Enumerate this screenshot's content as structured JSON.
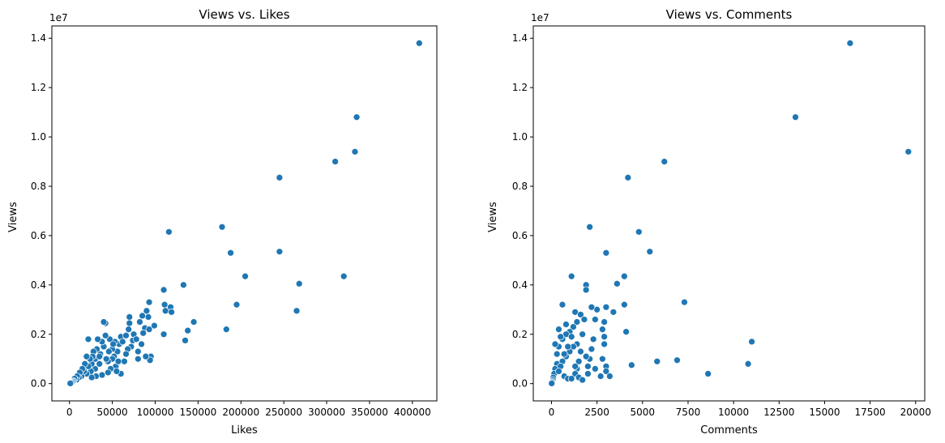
{
  "chart_data": [
    {
      "type": "scatter",
      "title": "Views vs. Likes",
      "xlabel": "Likes",
      "ylabel": "Views",
      "y_offset_label": "1e7",
      "xlim": [
        -20500,
        428500
      ],
      "ylim": [
        -700000,
        14500000
      ],
      "xticks": [
        0,
        50000,
        100000,
        150000,
        200000,
        250000,
        300000,
        350000,
        400000
      ],
      "xtick_labels": [
        "0",
        "50000",
        "100000",
        "150000",
        "200000",
        "250000",
        "300000",
        "350000",
        "400000"
      ],
      "yticks": [
        0,
        2000000,
        4000000,
        6000000,
        8000000,
        10000000,
        12000000,
        14000000
      ],
      "ytick_labels": [
        "0.0",
        "0.2",
        "0.4",
        "0.6",
        "0.8",
        "1.0",
        "1.2",
        "1.4"
      ],
      "grid": false,
      "series": [
        {
          "color": "#1f77b4",
          "points": [
            [
              408000,
              13800000
            ],
            [
              335000,
              10800000
            ],
            [
              333000,
              9400000
            ],
            [
              310000,
              9000000
            ],
            [
              245000,
              8350000
            ],
            [
              245000,
              5350000
            ],
            [
              320000,
              4350000
            ],
            [
              268000,
              4050000
            ],
            [
              265000,
              2950000
            ],
            [
              178000,
              6350000
            ],
            [
              188000,
              5300000
            ],
            [
              205000,
              4350000
            ],
            [
              195000,
              3200000
            ],
            [
              183000,
              2200000
            ],
            [
              116000,
              6150000
            ],
            [
              133000,
              4000000
            ],
            [
              145000,
              2500000
            ],
            [
              138000,
              2150000
            ],
            [
              135000,
              1750000
            ],
            [
              110000,
              3800000
            ],
            [
              111000,
              3200000
            ],
            [
              112000,
              2950000
            ],
            [
              118000,
              3100000
            ],
            [
              119000,
              2900000
            ],
            [
              110000,
              2000000
            ],
            [
              93000,
              3300000
            ],
            [
              90000,
              2950000
            ],
            [
              92000,
              2700000
            ],
            [
              85000,
              2750000
            ],
            [
              82000,
              2500000
            ],
            [
              88000,
              2250000
            ],
            [
              93000,
              2200000
            ],
            [
              99000,
              2350000
            ],
            [
              95000,
              1100000
            ],
            [
              94000,
              950000
            ],
            [
              89000,
              1100000
            ],
            [
              84000,
              1600000
            ],
            [
              80000,
              1300000
            ],
            [
              80000,
              1000000
            ],
            [
              75000,
              2000000
            ],
            [
              74000,
              1750000
            ],
            [
              70000,
              2700000
            ],
            [
              70000,
              2450000
            ],
            [
              69000,
              2200000
            ],
            [
              72000,
              1500000
            ],
            [
              68000,
              1400000
            ],
            [
              66000,
              1200000
            ],
            [
              64000,
              900000
            ],
            [
              60000,
              1900000
            ],
            [
              58000,
              1600000
            ],
            [
              56000,
              1300000
            ],
            [
              53000,
              1700000
            ],
            [
              52000,
              1100000
            ],
            [
              54000,
              700000
            ],
            [
              50000,
              1000000
            ],
            [
              50000,
              1400000
            ],
            [
              48000,
              600000
            ],
            [
              47000,
              1800000
            ],
            [
              46000,
              1300000
            ],
            [
              45000,
              900000
            ],
            [
              42000,
              2450000
            ],
            [
              40000,
              2500000
            ],
            [
              42000,
              1950000
            ],
            [
              40000,
              1500000
            ],
            [
              38000,
              1700000
            ],
            [
              36000,
              1200000
            ],
            [
              35000,
              800000
            ],
            [
              33000,
              1800000
            ],
            [
              32000,
              1400000
            ],
            [
              30000,
              1000000
            ],
            [
              30000,
              600000
            ],
            [
              28000,
              1300000
            ],
            [
              27000,
              1100000
            ],
            [
              26000,
              800000
            ],
            [
              25000,
              500000
            ],
            [
              24000,
              1000000
            ],
            [
              22000,
              1800000
            ],
            [
              22000,
              700000
            ],
            [
              20000,
              1100000
            ],
            [
              20000,
              400000
            ],
            [
              18000,
              800000
            ],
            [
              17000,
              500000
            ],
            [
              15000,
              600000
            ],
            [
              14000,
              300000
            ],
            [
              12000,
              450000
            ],
            [
              11000,
              250000
            ],
            [
              9000,
              300000
            ],
            [
              8000,
              150000
            ],
            [
              6000,
              200000
            ],
            [
              5000,
              100000
            ],
            [
              4000,
              80000
            ],
            [
              3000,
              50000
            ],
            [
              2000,
              30000
            ],
            [
              1000,
              10000
            ],
            [
              60000,
              400000
            ],
            [
              55000,
              500000
            ],
            [
              45000,
              450000
            ],
            [
              38000,
              350000
            ],
            [
              31000,
              300000
            ],
            [
              26000,
              250000
            ],
            [
              62000,
              1700000
            ],
            [
              78000,
              1800000
            ],
            [
              86000,
              2050000
            ],
            [
              66000,
              1950000
            ],
            [
              57000,
              900000
            ],
            [
              43000,
              1000000
            ],
            [
              35000,
              1100000
            ],
            [
              51000,
              1600000
            ]
          ]
        }
      ]
    },
    {
      "type": "scatter",
      "title": "Views vs. Comments",
      "xlabel": "Comments",
      "ylabel": "Views",
      "y_offset_label": "1e7",
      "xlim": [
        -1000,
        20500
      ],
      "ylim": [
        -700000,
        14500000
      ],
      "xticks": [
        0,
        2500,
        5000,
        7500,
        10000,
        12500,
        15000,
        17500,
        20000
      ],
      "xtick_labels": [
        "0",
        "2500",
        "5000",
        "7500",
        "10000",
        "12500",
        "15000",
        "17500",
        "20000"
      ],
      "yticks": [
        0,
        2000000,
        4000000,
        6000000,
        8000000,
        10000000,
        12000000,
        14000000
      ],
      "ytick_labels": [
        "0.0",
        "0.2",
        "0.4",
        "0.6",
        "0.8",
        "1.0",
        "1.2",
        "1.4"
      ],
      "grid": false,
      "series": [
        {
          "color": "#1f77b4",
          "points": [
            [
              16400,
              13800000
            ],
            [
              13400,
              10800000
            ],
            [
              19600,
              9400000
            ],
            [
              6200,
              9000000
            ],
            [
              4200,
              8350000
            ],
            [
              4800,
              6150000
            ],
            [
              5400,
              5350000
            ],
            [
              3000,
              5300000
            ],
            [
              7300,
              3300000
            ],
            [
              2100,
              6350000
            ],
            [
              4000,
              4350000
            ],
            [
              3600,
              4050000
            ],
            [
              1900,
              4000000
            ],
            [
              1900,
              3800000
            ],
            [
              1100,
              4350000
            ],
            [
              11000,
              1700000
            ],
            [
              10800,
              800000
            ],
            [
              8600,
              400000
            ],
            [
              6900,
              950000
            ],
            [
              5800,
              900000
            ],
            [
              4400,
              750000
            ],
            [
              4100,
              2100000
            ],
            [
              3400,
              2900000
            ],
            [
              4000,
              3200000
            ],
            [
              3000,
              3100000
            ],
            [
              2900,
              2500000
            ],
            [
              2800,
              2200000
            ],
            [
              2900,
              1900000
            ],
            [
              2900,
              1600000
            ],
            [
              2800,
              1000000
            ],
            [
              3000,
              700000
            ],
            [
              3000,
              500000
            ],
            [
              3200,
              300000
            ],
            [
              2700,
              300000
            ],
            [
              2500,
              3000000
            ],
            [
              2400,
              2600000
            ],
            [
              2300,
              1800000
            ],
            [
              2200,
              1400000
            ],
            [
              2100,
              1000000
            ],
            [
              2000,
              700000
            ],
            [
              2000,
              400000
            ],
            [
              2200,
              3100000
            ],
            [
              2400,
              600000
            ],
            [
              600,
              3200000
            ],
            [
              1300,
              2900000
            ],
            [
              1600,
              2800000
            ],
            [
              1400,
              2500000
            ],
            [
              1200,
              2300000
            ],
            [
              1000,
              2100000
            ],
            [
              800,
              2000000
            ],
            [
              600,
              1800000
            ],
            [
              1400,
              1600000
            ],
            [
              1200,
              1500000
            ],
            [
              1000,
              1300000
            ],
            [
              800,
              1100000
            ],
            [
              600,
              900000
            ],
            [
              400,
              2200000
            ],
            [
              400,
              1500000
            ],
            [
              300,
              1200000
            ],
            [
              300,
              800000
            ],
            [
              200,
              1600000
            ],
            [
              200,
              600000
            ],
            [
              150,
              400000
            ],
            [
              100,
              250000
            ],
            [
              80,
              150000
            ],
            [
              50,
              80000
            ],
            [
              30,
              40000
            ],
            [
              10,
              10000
            ],
            [
              1800,
              2600000
            ],
            [
              1700,
              2000000
            ],
            [
              1600,
              1300000
            ],
            [
              1500,
              900000
            ],
            [
              1400,
              600000
            ],
            [
              1300,
              400000
            ],
            [
              1100,
              1900000
            ],
            [
              900,
              1500000
            ],
            [
              700,
              1200000
            ],
            [
              500,
              700000
            ],
            [
              400,
              500000
            ],
            [
              700,
              300000
            ],
            [
              900,
              200000
            ],
            [
              1100,
              200000
            ],
            [
              1300,
              700000
            ],
            [
              1500,
              250000
            ],
            [
              1700,
              150000
            ],
            [
              1900,
              1100000
            ],
            [
              500,
              1900000
            ],
            [
              800,
              2400000
            ]
          ]
        }
      ]
    }
  ]
}
